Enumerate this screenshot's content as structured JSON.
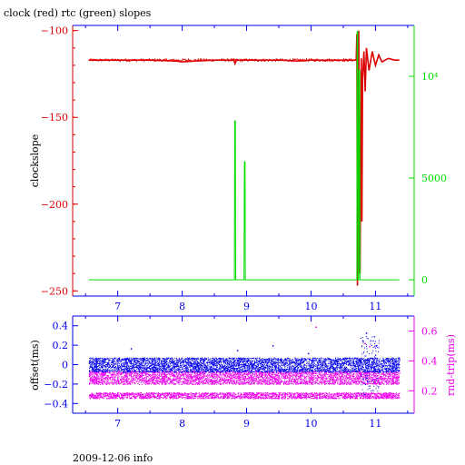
{
  "title": "clock (red) rtc (green) slopes",
  "footer": "2009-12-06 info",
  "colors": {
    "red": "#dd0000",
    "green": "#00dd00",
    "blue": "#0000ee",
    "magenta": "#ee00ee",
    "black": "#000000"
  },
  "chart_data": [
    {
      "type": "line",
      "title": "clock (red) rtc (green) slopes",
      "xlabel": "",
      "ylabel": "clockslope",
      "y2label": "",
      "xlim": [
        6.3,
        11.6
      ],
      "ylim": [
        -253,
        -97
      ],
      "y2lim": [
        -800,
        12500
      ],
      "x_ticks": [
        7,
        8,
        9,
        10,
        11
      ],
      "y_ticks": [
        -100,
        -150,
        -200,
        -250
      ],
      "y2_ticks": [
        {
          "value": 0,
          "label": "0"
        },
        {
          "value": 5000,
          "label": "5000"
        },
        {
          "value": 10000,
          "label": "10⁴"
        }
      ],
      "grid": false,
      "series": [
        {
          "name": "clock",
          "axis": "left",
          "color": "red",
          "x": [
            6.55,
            7.0,
            7.5,
            7.9,
            8.0,
            8.2,
            8.5,
            8.8,
            8.82,
            8.84,
            9.0,
            9.5,
            9.8,
            10.0,
            10.5,
            10.7,
            10.71,
            10.72,
            10.74,
            10.76,
            10.78,
            10.79,
            10.8,
            10.82,
            10.84,
            10.86,
            10.9,
            10.95,
            11.0,
            11.05,
            11.1,
            11.2,
            11.3,
            11.37
          ],
          "y": [
            -117,
            -117,
            -117,
            -117.5,
            -118,
            -117.5,
            -117,
            -117,
            -119,
            -117,
            -117,
            -117,
            -117.5,
            -117,
            -117,
            -117,
            -102,
            -247,
            -100,
            -240,
            -116,
            -210,
            -128,
            -112,
            -135,
            -110,
            -123,
            -112,
            -120,
            -114,
            -118,
            -116,
            -117,
            -117
          ]
        },
        {
          "name": "rtc",
          "axis": "right",
          "color": "green",
          "x": [
            6.55,
            8.2,
            8.8,
            8.81,
            8.815,
            8.825,
            8.83,
            8.95,
            8.96,
            8.965,
            8.975,
            8.98,
            10.0,
            10.7,
            10.71,
            10.715,
            10.725,
            10.73,
            10.74,
            10.745,
            10.755,
            10.76,
            10.8,
            11.37
          ],
          "y": [
            0,
            0,
            0,
            0,
            7800,
            7800,
            0,
            0,
            0,
            5800,
            5800,
            0,
            0,
            0,
            0,
            12200,
            12200,
            0,
            0,
            10300,
            10300,
            0,
            0,
            0
          ]
        }
      ]
    },
    {
      "type": "scatter",
      "xlabel": "",
      "ylabel": "offset(ms)",
      "y2label": "rnd-trip(ms)",
      "xlim": [
        6.3,
        11.6
      ],
      "ylim": [
        -0.5,
        0.5
      ],
      "y2lim": [
        0.05,
        0.7
      ],
      "x_ticks": [
        7,
        8,
        9,
        10,
        11
      ],
      "y_ticks": [
        0.4,
        0.2,
        0,
        -0.2,
        -0.4
      ],
      "y2_ticks": [
        0.6,
        0.4,
        0.2
      ],
      "grid": false,
      "series": [
        {
          "name": "offset",
          "axis": "left",
          "color": "blue",
          "x_range": [
            6.55,
            11.37
          ],
          "band_center": 0.0,
          "band_halfwidth": 0.075,
          "outliers": [
            [
              7.2,
              0.17
            ],
            [
              8.85,
              0.15
            ],
            [
              9.4,
              0.2
            ],
            [
              9.95,
              0.12
            ],
            [
              10.8,
              0.25
            ],
            [
              10.82,
              -0.3
            ],
            [
              10.85,
              0.33
            ],
            [
              11.0,
              0.2
            ]
          ]
        },
        {
          "name": "rnd-trip",
          "axis": "right",
          "color": "magenta",
          "x_range": [
            6.55,
            11.37
          ],
          "band_center": 0.29,
          "band_halfwidth": 0.045,
          "floor_band": [
            0.15,
            0.19
          ],
          "outliers": [
            [
              10.07,
              0.63
            ],
            [
              10.83,
              0.52
            ],
            [
              10.9,
              0.5
            ]
          ]
        }
      ]
    }
  ]
}
